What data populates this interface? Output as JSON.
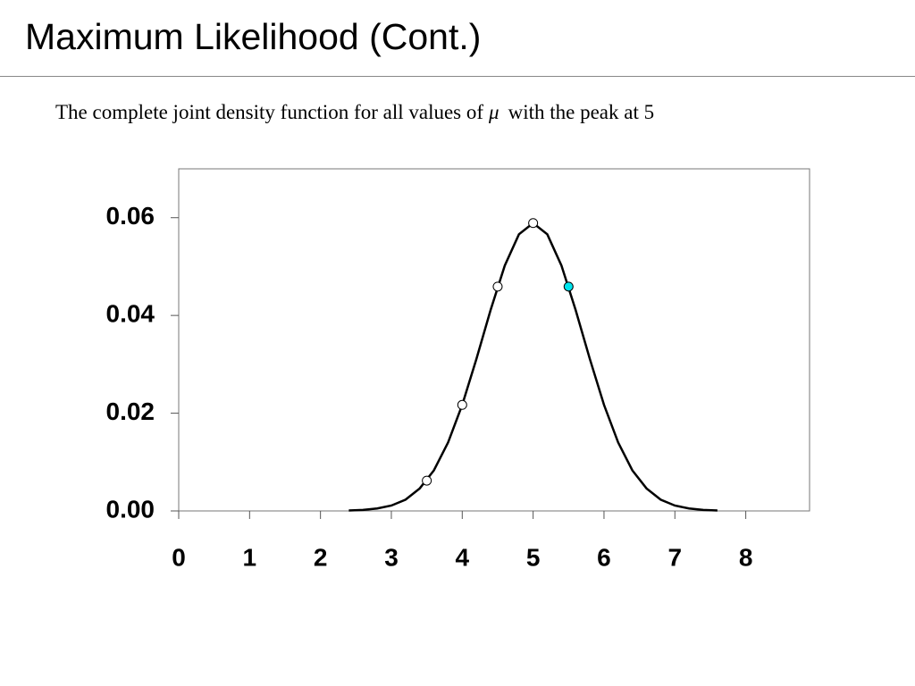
{
  "chart_data": {
    "type": "line",
    "title": "Maximum Likelihood (Cont.)",
    "subtitle": [
      "The complete joint density function for all values of",
      "μ",
      "with the peak at 5"
    ],
    "xlim": [
      0,
      8.9
    ],
    "ylim": [
      0,
      0.07
    ],
    "xticks": [
      0,
      1,
      2,
      3,
      4,
      5,
      6,
      7,
      8
    ],
    "yticks": [
      {
        "value": 0,
        "label": "0.00"
      },
      0.02,
      0.04,
      0.06
    ],
    "series": [
      {
        "mode": "line",
        "color": "#000000",
        "x": [
          2.4,
          2.6,
          2.8,
          3.0,
          3.2,
          3.4,
          3.6,
          3.8,
          4.0,
          4.2,
          4.4,
          4.6,
          4.8,
          5.0,
          5.2,
          5.4,
          5.6,
          5.8,
          6.0,
          6.2,
          6.4,
          6.6,
          6.8,
          7.0,
          7.2,
          7.4,
          7.6
        ],
        "values": [
          0.0001,
          0.0002,
          0.0005,
          0.0011,
          0.0023,
          0.0046,
          0.0083,
          0.014,
          0.0217,
          0.0311,
          0.0411,
          0.0502,
          0.0566,
          0.0589,
          0.0566,
          0.0502,
          0.0411,
          0.0311,
          0.0217,
          0.014,
          0.0083,
          0.0046,
          0.0023,
          0.0011,
          0.0005,
          0.0002,
          0.0001
        ]
      },
      {
        "mode": "markers",
        "color": "#ffffff",
        "x": [
          3.5,
          4.0,
          4.5,
          5.0
        ],
        "values": [
          0.0062,
          0.0217,
          0.0459,
          0.0589
        ]
      },
      {
        "mode": "markers",
        "color": "#00e5ee",
        "x": [
          5.5
        ],
        "values": [
          0.0459
        ]
      }
    ]
  }
}
